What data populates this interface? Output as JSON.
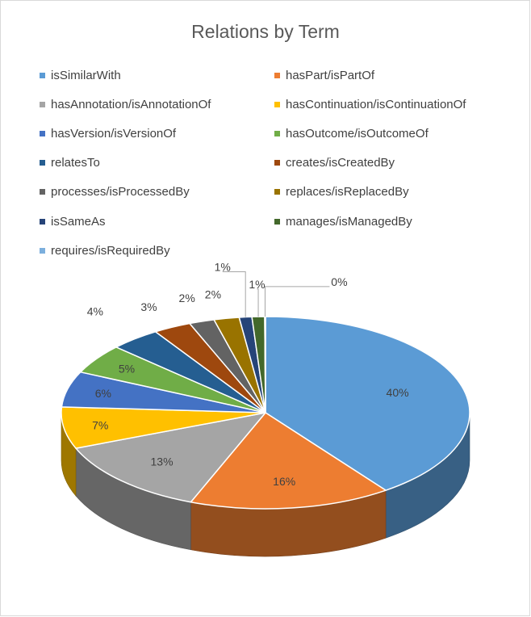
{
  "chart_data": {
    "type": "pie",
    "title": "Relations by Term",
    "legend_position": "top",
    "categories": [
      "isSimilarWith",
      "hasPart/isPartOf",
      "hasAnnotation/isAnnotationOf",
      "hasContinuation/isContinuationOf",
      "hasVersion/isVersionOf",
      "hasOutcome/isOutcomeOf",
      "relatesTo",
      "creates/isCreatedBy",
      "processes/isProcessedBy",
      "replaces/isReplacedBy",
      "isSameAs",
      "manages/isManagedBy",
      "requires/isRequiredBy"
    ],
    "values": [
      40,
      16,
      13,
      7,
      6,
      5,
      4,
      3,
      2,
      2,
      1,
      1,
      0
    ],
    "labels": [
      "40%",
      "16%",
      "13%",
      "7%",
      "6%",
      "5%",
      "4%",
      "3%",
      "2%",
      "2%",
      "1%",
      "1%",
      "0%"
    ],
    "colors": [
      "#5b9bd5",
      "#ed7d31",
      "#a5a5a5",
      "#ffc000",
      "#4472c4",
      "#70ad47",
      "#255e91",
      "#9e480e",
      "#636363",
      "#997300",
      "#264478",
      "#43682b",
      "#7cafdd"
    ]
  }
}
